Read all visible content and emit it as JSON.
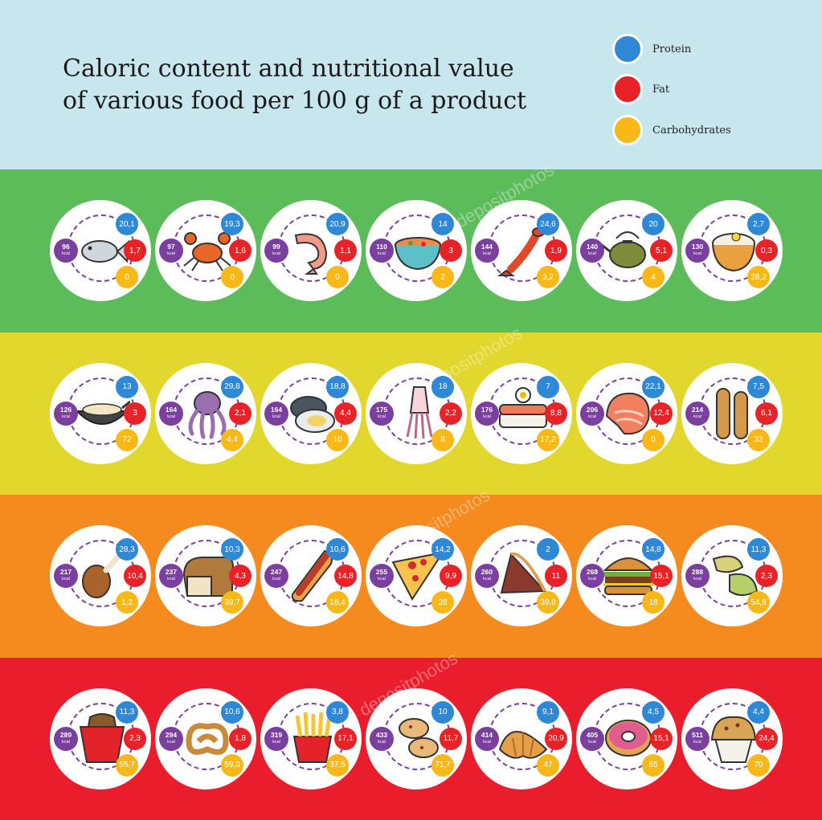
{
  "title": {
    "line1": "Caloric content and nutritional value",
    "line2": "of various food per 100 g of a product"
  },
  "legend": [
    {
      "label": "Protein",
      "color": "#2f88d6"
    },
    {
      "label": "Fat",
      "color": "#e82226"
    },
    {
      "label": "Carbohydrates",
      "color": "#f7b818"
    }
  ],
  "kcal_unit": "kcal",
  "watermark": "depositphotos",
  "band_colors": [
    "#5cbc5a",
    "#e2d72c",
    "#f58a1f",
    "#ea1d2c"
  ],
  "rows": [
    [
      {
        "icon": "fish-icon",
        "kcal": "96",
        "protein": "20,1",
        "fat": "1,7",
        "carbs": "0"
      },
      {
        "icon": "crab-icon",
        "kcal": "97",
        "protein": "19,3",
        "fat": "1,6",
        "carbs": "0"
      },
      {
        "icon": "shrimp-icon",
        "kcal": "99",
        "protein": "20,9",
        "fat": "1,1",
        "carbs": "0"
      },
      {
        "icon": "soup-bowl-icon",
        "kcal": "110",
        "protein": "14",
        "fat": "3",
        "carbs": "2"
      },
      {
        "icon": "lobster-icon",
        "kcal": "144",
        "protein": "24,6",
        "fat": "1,9",
        "carbs": "3,2"
      },
      {
        "icon": "teapot-icon",
        "kcal": "140",
        "protein": "20",
        "fat": "5,1",
        "carbs": "4"
      },
      {
        "icon": "rice-bowl-icon",
        "kcal": "130",
        "protein": "2,7",
        "fat": "0,3",
        "carbs": "28,2"
      }
    ],
    [
      {
        "icon": "wok-icon",
        "kcal": "126",
        "protein": "13",
        "fat": "3",
        "carbs": "72"
      },
      {
        "icon": "octopus-icon",
        "kcal": "164",
        "protein": "29,8",
        "fat": "2,1",
        "carbs": "4,4"
      },
      {
        "icon": "oyster-icon",
        "kcal": "164",
        "protein": "18,8",
        "fat": "4,4",
        "carbs": "10"
      },
      {
        "icon": "squid-icon",
        "kcal": "175",
        "protein": "18",
        "fat": "2,2",
        "carbs": "8"
      },
      {
        "icon": "sushi-icon",
        "kcal": "176",
        "protein": "7",
        "fat": "8,8",
        "carbs": "17,2"
      },
      {
        "icon": "salmon-steak-icon",
        "kcal": "206",
        "protein": "22,1",
        "fat": "12,4",
        "carbs": "0"
      },
      {
        "icon": "baguette-icon",
        "kcal": "214",
        "protein": "7,5",
        "fat": "6,1",
        "carbs": "32"
      }
    ],
    [
      {
        "icon": "chicken-leg-icon",
        "kcal": "217",
        "protein": "28,3",
        "fat": "10,4",
        "carbs": "1,2"
      },
      {
        "icon": "bread-icon",
        "kcal": "237",
        "protein": "10,3",
        "fat": "4,3",
        "carbs": "39,7"
      },
      {
        "icon": "hot-dog-icon",
        "kcal": "247",
        "protein": "10,6",
        "fat": "14,8",
        "carbs": "18,4"
      },
      {
        "icon": "pizza-slice-icon",
        "kcal": "255",
        "protein": "14,2",
        "fat": "9,9",
        "carbs": "28"
      },
      {
        "icon": "pie-slice-icon",
        "kcal": "260",
        "protein": "2",
        "fat": "11",
        "carbs": "39,8"
      },
      {
        "icon": "burger-icon",
        "kcal": "268",
        "protein": "14,8",
        "fat": "15,1",
        "carbs": "18"
      },
      {
        "icon": "pasta-icon",
        "kcal": "288",
        "protein": "11,3",
        "fat": "2,3",
        "carbs": "54,8"
      }
    ],
    [
      {
        "icon": "noodle-box-icon",
        "kcal": "289",
        "protein": "11,3",
        "fat": "2,3",
        "carbs": "55,7"
      },
      {
        "icon": "pretzel-icon",
        "kcal": "294",
        "protein": "10,6",
        "fat": "1,8",
        "carbs": "59,3"
      },
      {
        "icon": "french-fries-icon",
        "kcal": "319",
        "protein": "3,8",
        "fat": "17,1",
        "carbs": "37,5"
      },
      {
        "icon": "cookies-icon",
        "kcal": "433",
        "protein": "10",
        "fat": "11,7",
        "carbs": "71,7"
      },
      {
        "icon": "croissant-icon",
        "kcal": "414",
        "protein": "9,1",
        "fat": "20,9",
        "carbs": "47"
      },
      {
        "icon": "donut-icon",
        "kcal": "405",
        "protein": "4,5",
        "fat": "15,1",
        "carbs": "65"
      },
      {
        "icon": "muffin-icon",
        "kcal": "511",
        "protein": "4,4",
        "fat": "24,4",
        "carbs": "70"
      }
    ]
  ]
}
